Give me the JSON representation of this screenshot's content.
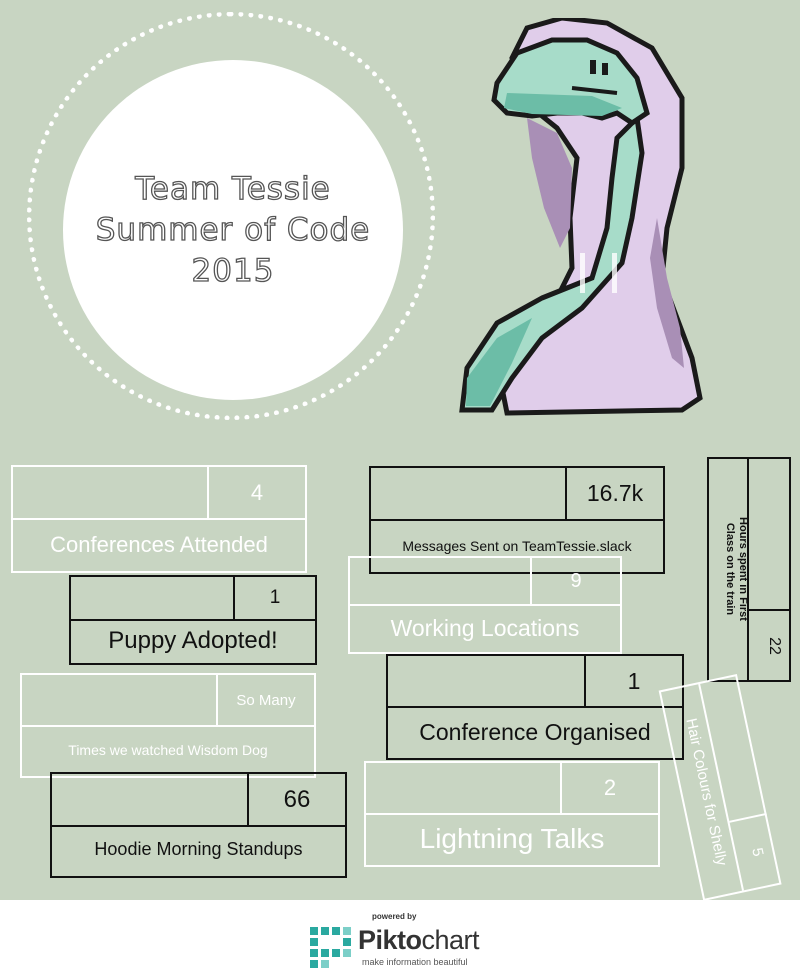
{
  "title": {
    "line1": "Team Tessie",
    "line2": "Summer of Code",
    "line3": "2015"
  },
  "stats": {
    "conferences": {
      "value": "4",
      "label": "Conferences Attended"
    },
    "messages": {
      "value": "16.7k",
      "label": "Messages Sent on TeamTessie.slack"
    },
    "first_class": {
      "value": "22",
      "label": "Hours spent in First Class on the train"
    },
    "puppy": {
      "value": "1",
      "label": "Puppy Adopted!"
    },
    "locations": {
      "value": "9",
      "label": "Working Locations"
    },
    "wisdom_dog": {
      "value": "So Many",
      "label": "Times we watched Wisdom Dog"
    },
    "organised": {
      "value": "1",
      "label": "Conference Organised"
    },
    "hair": {
      "value": "5",
      "label": "Hair Colours for Shelly"
    },
    "standups": {
      "value": "66",
      "label": "Hoodie Morning Standups"
    },
    "lightning": {
      "value": "2",
      "label": "Lightning Talks"
    }
  },
  "footer": {
    "powered_by": "powered by",
    "brand_bold": "Pikto",
    "brand_thin": "chart",
    "tagline": "make information beautiful"
  },
  "colors": {
    "background": "#c8d5c2",
    "hoodie": "#e0cdea",
    "snake": "#a7dcc9"
  }
}
